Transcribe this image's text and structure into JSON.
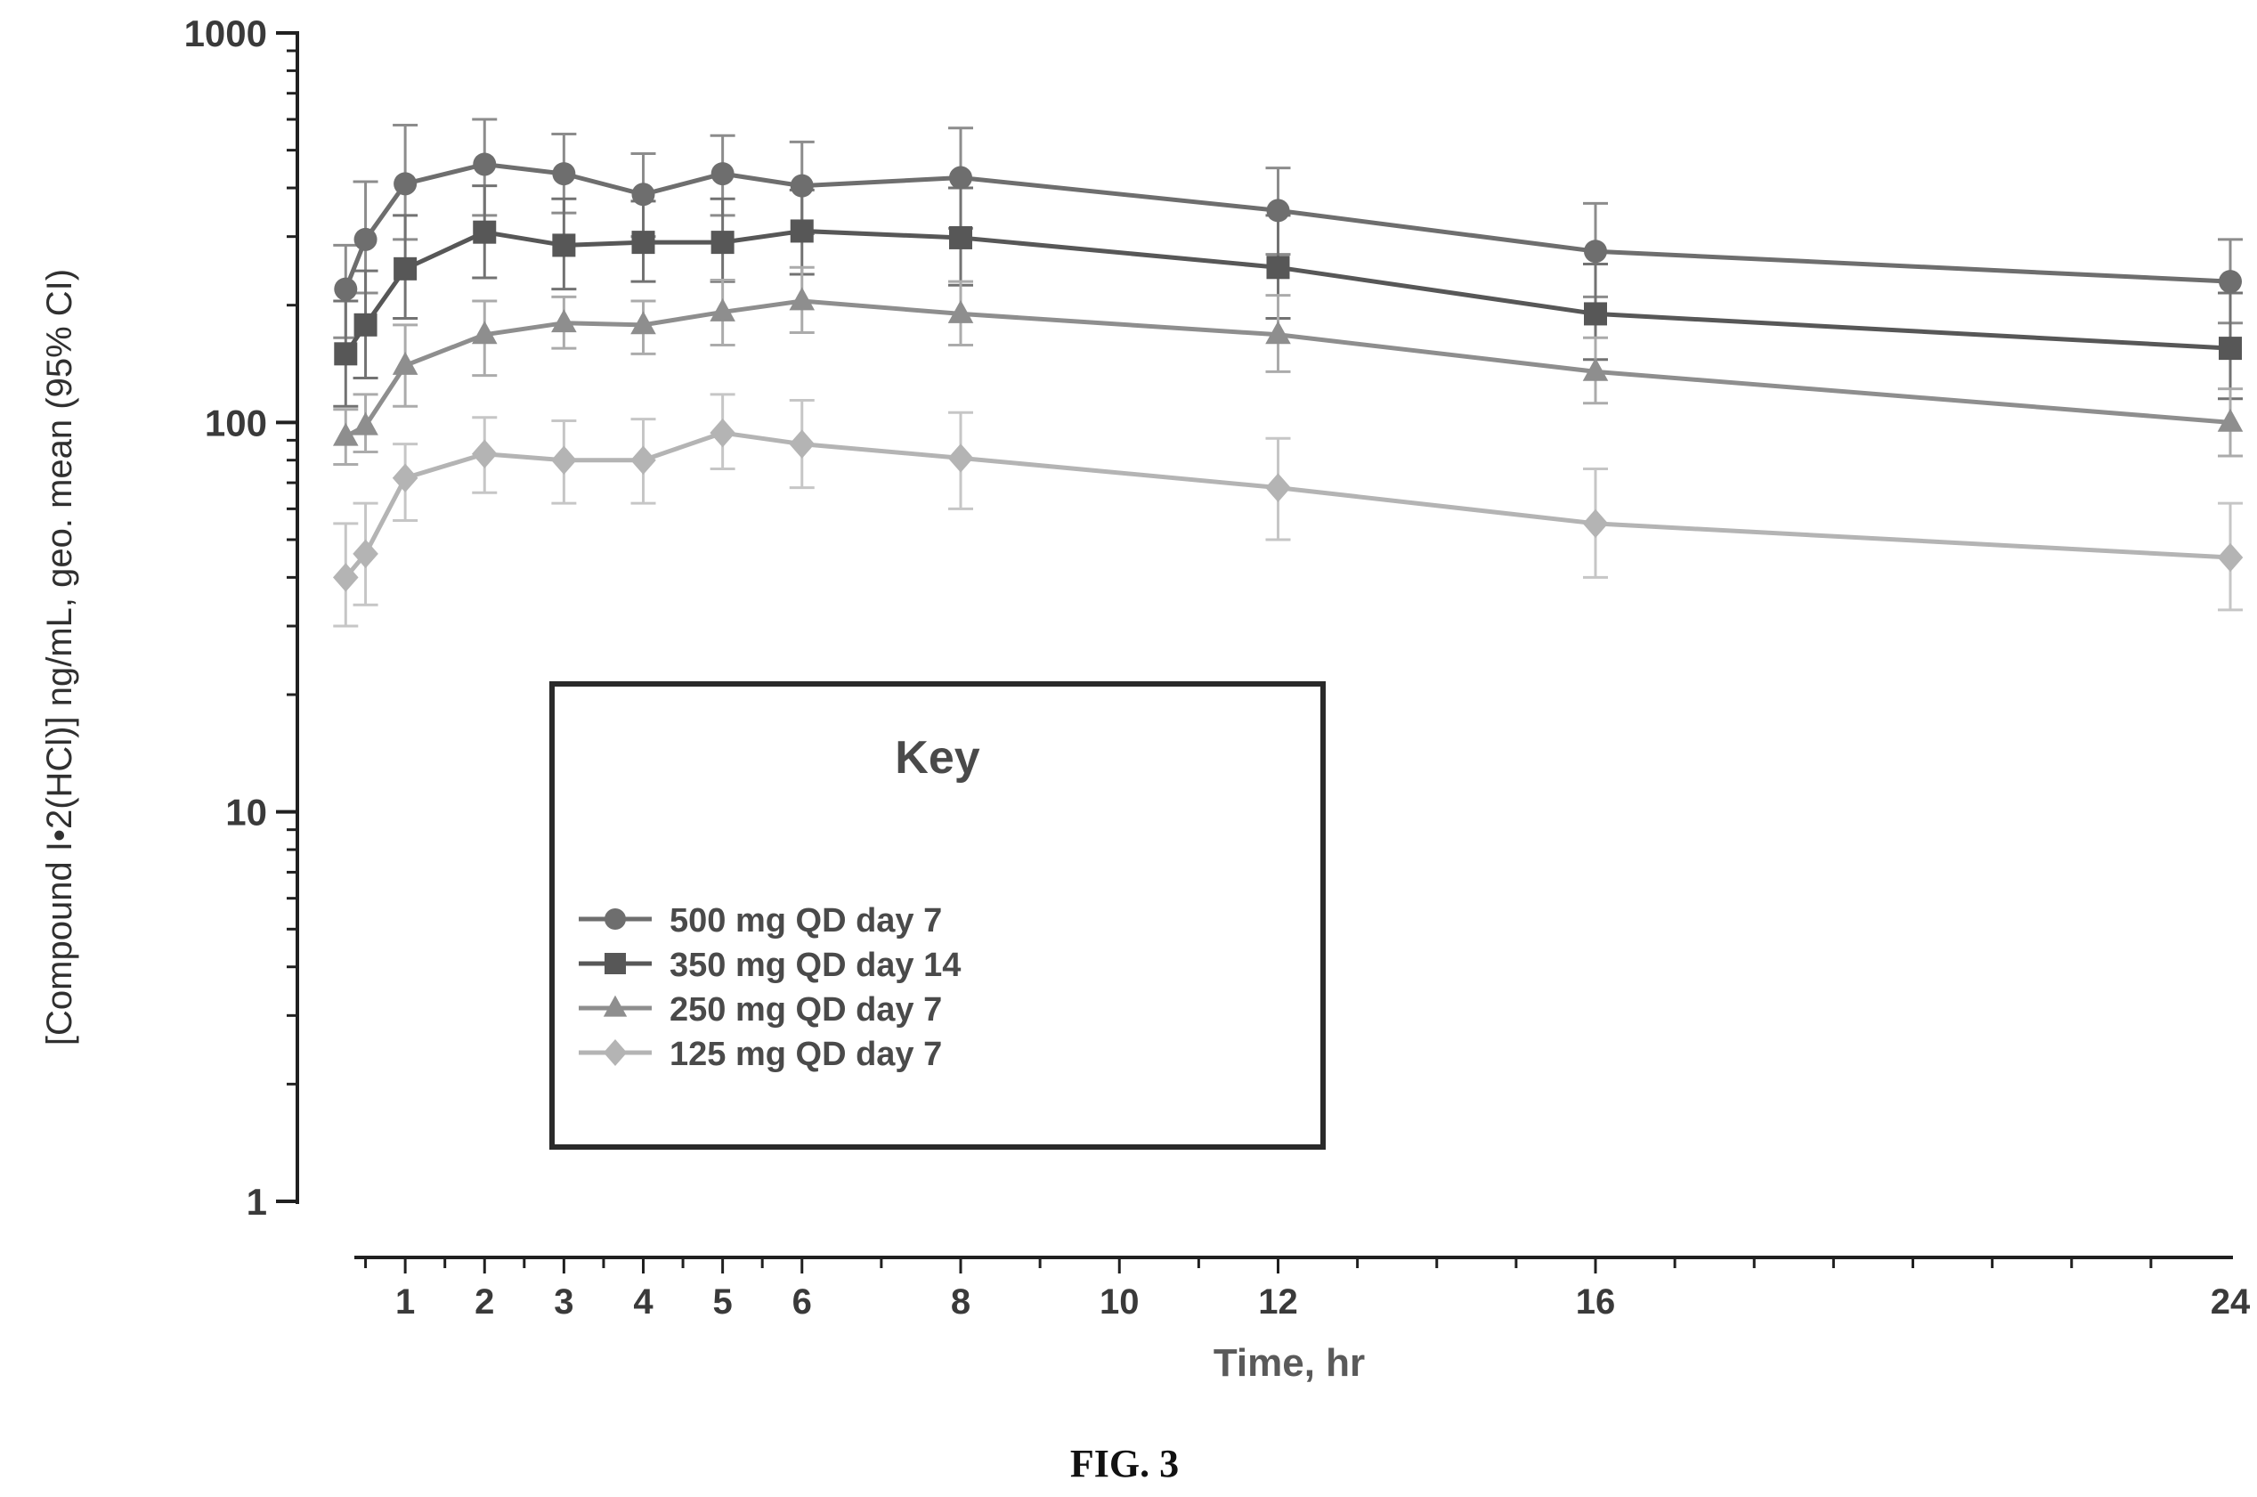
{
  "figure": {
    "caption": "FIG. 3"
  },
  "legend": {
    "title": "Key",
    "placement": "inside-lower-left"
  },
  "colors": {
    "axis": "#202020",
    "series": [
      "#6e6e6e",
      "#575757",
      "#8e8e8e",
      "#b4b4b4"
    ],
    "error_bars": [
      "#8c8c8c",
      "#727272",
      "#ababab",
      "#c6c6c6"
    ]
  },
  "chart_data": {
    "type": "line",
    "xlabel": "Time, hr",
    "ylabel": "[Compound I•2(HCl)] ng/mL, geo. mean (95% CI)",
    "yscale": "log",
    "ylim": [
      1,
      1000
    ],
    "xlim": [
      0,
      24
    ],
    "yticks": [
      1,
      10,
      100,
      1000
    ],
    "xticks": [
      1,
      2,
      3,
      4,
      5,
      6,
      8,
      10,
      12,
      16,
      24
    ],
    "x": [
      0.25,
      0.5,
      1,
      2,
      3,
      4,
      5,
      6,
      8,
      12,
      16,
      24
    ],
    "grid": false,
    "series": [
      {
        "name": "500 mg QD day 7",
        "marker": "circle",
        "values": [
          220,
          295,
          410,
          460,
          435,
          385,
          435,
          405,
          425,
          350,
          275,
          230
        ],
        "ci_lower": [
          165,
          215,
          295,
          340,
          345,
          300,
          340,
          305,
          315,
          270,
          210,
          180
        ],
        "ci_upper": [
          285,
          415,
          580,
          600,
          550,
          490,
          545,
          525,
          570,
          450,
          365,
          295
        ]
      },
      {
        "name": "350 mg QD day 14",
        "marker": "square",
        "values": [
          150,
          178,
          248,
          308,
          285,
          290,
          290,
          310,
          298,
          250,
          190,
          155
        ],
        "ci_lower": [
          110,
          130,
          185,
          235,
          220,
          230,
          230,
          240,
          225,
          185,
          145,
          115
        ],
        "ci_upper": [
          205,
          245,
          340,
          405,
          375,
          370,
          375,
          395,
          400,
          340,
          255,
          215
        ]
      },
      {
        "name": "250 mg QD day 7",
        "marker": "triangle",
        "values": [
          92,
          98,
          140,
          168,
          180,
          178,
          192,
          205,
          190,
          168,
          135,
          100
        ],
        "ci_lower": [
          78,
          84,
          110,
          132,
          155,
          150,
          158,
          170,
          158,
          135,
          112,
          82
        ],
        "ci_upper": [
          108,
          118,
          178,
          205,
          210,
          205,
          232,
          250,
          230,
          212,
          165,
          122
        ]
      },
      {
        "name": "125 mg QD day 7",
        "marker": "diamond",
        "values": [
          40,
          46,
          72,
          83,
          80,
          80,
          94,
          88,
          81,
          68,
          55,
          45
        ],
        "ci_lower": [
          30,
          34,
          56,
          66,
          62,
          62,
          76,
          68,
          60,
          50,
          40,
          33
        ],
        "ci_upper": [
          55,
          62,
          88,
          103,
          101,
          102,
          118,
          114,
          106,
          91,
          76,
          62
        ]
      }
    ]
  }
}
